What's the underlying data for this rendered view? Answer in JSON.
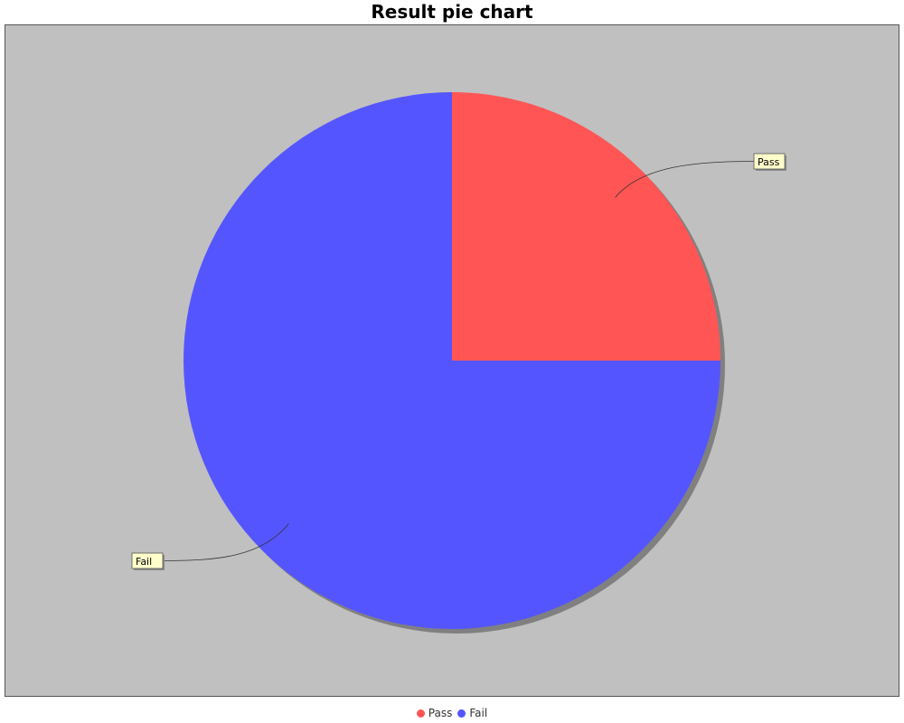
{
  "chart_data": {
    "type": "pie",
    "title": "Result pie chart",
    "categories": [
      "Pass",
      "Fail"
    ],
    "values": [
      25,
      75
    ],
    "colors": [
      "#ff5555",
      "#5555ff"
    ],
    "start_angle_deg": 90,
    "direction": "clockwise",
    "legend_position": "bottom",
    "background": "#c0c0c0",
    "label_box_color": "#ffffcc"
  }
}
